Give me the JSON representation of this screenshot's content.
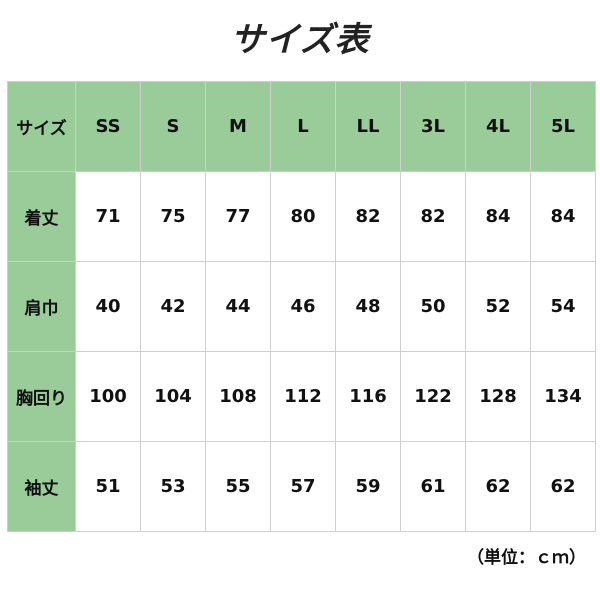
{
  "title": "サイズ表",
  "header": {
    "label": "サイズ",
    "sizes": [
      "SS",
      "S",
      "M",
      "L",
      "LL",
      "3L",
      "4L",
      "5L"
    ]
  },
  "rows": [
    {
      "label": "着丈",
      "values": [
        "71",
        "75",
        "77",
        "80",
        "82",
        "82",
        "84",
        "84"
      ]
    },
    {
      "label": "肩巾",
      "values": [
        "40",
        "42",
        "44",
        "46",
        "48",
        "50",
        "52",
        "54"
      ]
    },
    {
      "label": "胸回り",
      "values": [
        "100",
        "104",
        "108",
        "112",
        "116",
        "122",
        "128",
        "134"
      ]
    },
    {
      "label": "袖丈",
      "values": [
        "51",
        "53",
        "55",
        "57",
        "59",
        "61",
        "62",
        "62"
      ]
    }
  ],
  "unit": "（単位：ｃｍ）",
  "colors": {
    "header_bg": "#99cc99",
    "grid": "#cfcfcf"
  }
}
